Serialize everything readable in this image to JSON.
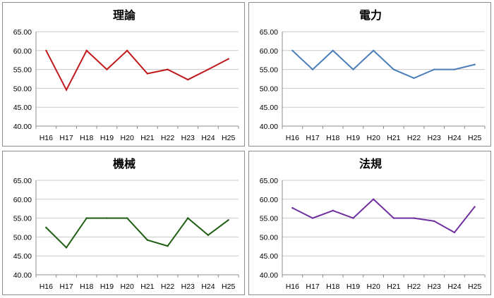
{
  "chart_data": [
    {
      "type": "line",
      "title": "理論",
      "categories": [
        "H16",
        "H17",
        "H18",
        "H19",
        "H20",
        "H21",
        "H22",
        "H23",
        "H24",
        "H25"
      ],
      "series": [
        {
          "values": [
            60.0,
            49.6,
            60.0,
            55.0,
            60.0,
            53.9,
            55.0,
            52.3,
            55.0,
            57.8
          ],
          "color": "#c0191c"
        }
      ],
      "ylim": [
        40,
        65
      ],
      "yticks": [
        "40.00",
        "45.00",
        "50.00",
        "55.00",
        "60.00",
        "65.00"
      ],
      "grid": true,
      "legend": "none"
    },
    {
      "type": "line",
      "title": "電力",
      "categories": [
        "H16",
        "H17",
        "H18",
        "H19",
        "H20",
        "H21",
        "H22",
        "H23",
        "H24",
        "H25"
      ],
      "series": [
        {
          "values": [
            60.0,
            55.0,
            60.0,
            55.0,
            60.0,
            55.0,
            52.7,
            55.0,
            55.0,
            56.3
          ],
          "color": "#4a7ebb"
        }
      ],
      "ylim": [
        40,
        65
      ],
      "yticks": [
        "40.00",
        "45.00",
        "50.00",
        "55.00",
        "60.00",
        "65.00"
      ],
      "grid": true,
      "legend": "none"
    },
    {
      "type": "line",
      "title": "機械",
      "categories": [
        "H16",
        "H17",
        "H18",
        "H19",
        "H20",
        "H21",
        "H22",
        "H23",
        "H24",
        "H25"
      ],
      "series": [
        {
          "values": [
            52.5,
            47.2,
            55.0,
            55.0,
            55.0,
            49.2,
            47.6,
            55.0,
            50.5,
            54.5
          ],
          "color": "#1f5e12"
        }
      ],
      "ylim": [
        40,
        65
      ],
      "yticks": [
        "40.00",
        "45.00",
        "50.00",
        "55.00",
        "60.00",
        "65.00"
      ],
      "grid": true,
      "legend": "none"
    },
    {
      "type": "line",
      "title": "法規",
      "categories": [
        "H16",
        "H17",
        "H18",
        "H19",
        "H20",
        "H21",
        "H22",
        "H23",
        "H24",
        "H25"
      ],
      "series": [
        {
          "values": [
            57.7,
            55.0,
            57.0,
            55.0,
            60.0,
            55.0,
            55.0,
            54.2,
            51.2,
            58.0
          ],
          "color": "#7030a0"
        }
      ],
      "ylim": [
        40,
        65
      ],
      "yticks": [
        "40.00",
        "45.00",
        "50.00",
        "55.00",
        "60.00",
        "65.00"
      ],
      "grid": true,
      "legend": "none"
    }
  ]
}
